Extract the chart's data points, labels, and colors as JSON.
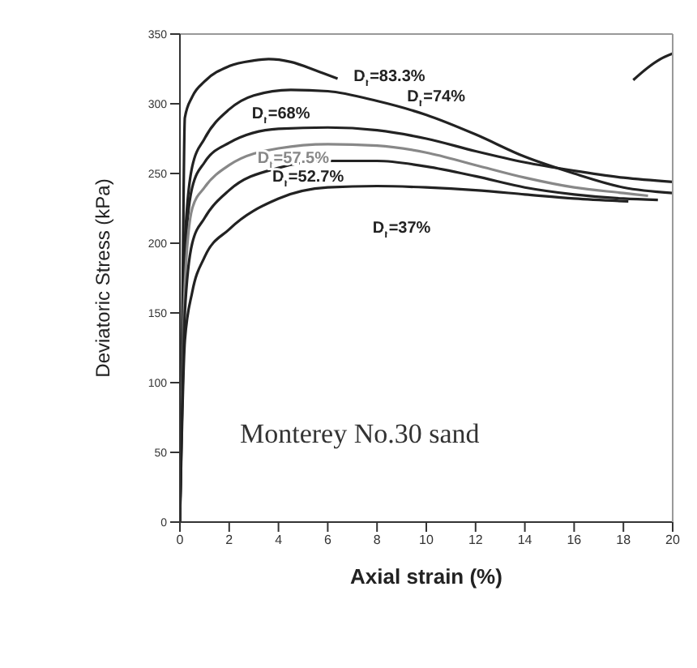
{
  "chart_data": {
    "type": "line",
    "xlabel": "Axial strain (%)",
    "ylabel": "Deviatoric Stress (kPa)",
    "xlim": [
      0,
      20
    ],
    "xticks": [
      0,
      2,
      4,
      6,
      8,
      10,
      12,
      14,
      16,
      18,
      20
    ],
    "ylim": [
      0,
      350
    ],
    "yticks": [
      0,
      50,
      100,
      150,
      200,
      250,
      300,
      350
    ],
    "legend": false,
    "marker": "none",
    "line_style": "solid",
    "series": [
      {
        "name": "D$_{r}$=83.3%",
        "color": "#222222",
        "x": [
          0,
          0.1,
          0.2,
          0.5,
          1,
          2,
          3,
          3.6,
          4.5,
          5.5,
          6.4
        ],
        "values": [
          0,
          150,
          290,
          305,
          316,
          327,
          331,
          332,
          330,
          324,
          318
        ]
      },
      {
        "name": "D$_{r}$=74%",
        "color": "#222222",
        "x": [
          0,
          0.2,
          0.5,
          1,
          2,
          3,
          4.5,
          6,
          8,
          10,
          12,
          14,
          16,
          18,
          20
        ],
        "values": [
          0,
          200,
          255,
          275,
          296,
          306,
          310,
          309,
          302,
          292,
          278,
          262,
          250,
          240,
          236
        ]
      },
      {
        "name": "D$_{r}$=68%",
        "color": "#222222",
        "x": [
          0,
          0.2,
          0.5,
          1,
          2,
          4,
          6,
          8,
          10,
          12,
          14,
          16,
          18,
          20
        ],
        "values": [
          0,
          190,
          240,
          258,
          272,
          282,
          283,
          281,
          275,
          266,
          258,
          252,
          247,
          244
        ]
      },
      {
        "name": "D$_{r}$=57.5%",
        "color": "#888888",
        "x": [
          0,
          0.2,
          0.5,
          1,
          2,
          4,
          6,
          8,
          10,
          12,
          14,
          16,
          18,
          19
        ],
        "values": [
          0,
          170,
          225,
          240,
          256,
          268,
          271,
          270,
          265,
          256,
          247,
          240,
          236,
          234
        ]
      },
      {
        "name": "D$_{r}$=52.7%",
        "color": "#222222",
        "x": [
          0,
          0.2,
          0.5,
          1,
          2,
          4,
          6,
          8,
          10,
          12,
          14,
          16,
          18,
          19.4
        ],
        "values": [
          0,
          150,
          200,
          218,
          238,
          254,
          259,
          259,
          255,
          248,
          240,
          235,
          232,
          231
        ]
      },
      {
        "name": "D$_{r}$=37%",
        "color": "#222222",
        "x": [
          0,
          0.2,
          0.5,
          1,
          2,
          4,
          6,
          8,
          10,
          12,
          14,
          16,
          18.2
        ],
        "values": [
          0,
          130,
          165,
          190,
          210,
          232,
          240,
          241,
          240,
          238,
          235,
          232,
          230
        ]
      },
      {
        "color": "#222222",
        "x": [
          18.4,
          19,
          19.5,
          20
        ],
        "values": [
          317,
          326,
          332,
          336
        ]
      }
    ],
    "annotations": [
      "Monterey No.30 sand"
    ]
  }
}
